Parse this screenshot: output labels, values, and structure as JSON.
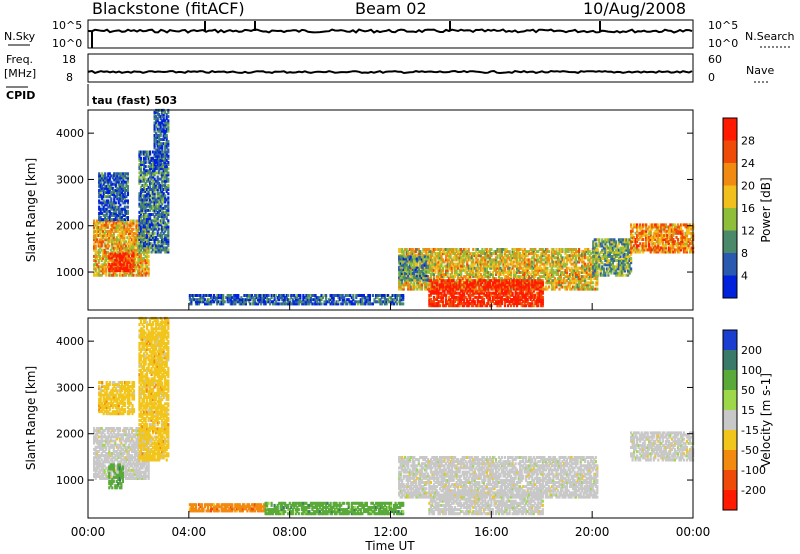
{
  "header": {
    "station": "Blackstone (fitACF)",
    "beam": "Beam 02",
    "date": "10/Aug/2008"
  },
  "top_panels": {
    "nsky_label": "N.Sky",
    "nsky_ticks": [
      "10^5",
      "10^0"
    ],
    "nsearch_label": "N.Search",
    "nsearch_ticks": [
      "10^5",
      "10^0"
    ],
    "freq_label_1": "Freq.",
    "freq_label_2": "[MHz]",
    "freq_ticks": [
      "18",
      "8"
    ],
    "nave_label": "Nave",
    "nave_ticks": [
      "60",
      "0"
    ],
    "cpid_label": "CPID",
    "cpid_value": "tau (fast) 503"
  },
  "colors": {
    "power": [
      "#0022dd",
      "#2a5ab0",
      "#4a8a6a",
      "#8fbf3a",
      "#f2c01c",
      "#f08a10",
      "#f04a08",
      "#ff1a00"
    ],
    "velocity": [
      "#1a3fd0",
      "#3a7a6a",
      "#5aaa3a",
      "#9dd84a",
      "#c8c8c8",
      "#f2c51c",
      "#f28a10",
      "#f04a08",
      "#ff1a00"
    ]
  },
  "chart_data": [
    {
      "type": "heatmap",
      "title": "Power",
      "ylabel": "Slant Range [km]",
      "ylim": [
        180,
        4500
      ],
      "xlim": [
        0,
        24
      ],
      "yticks": [
        "1000",
        "2000",
        "3000",
        "4000"
      ],
      "colorbar_label": "Power [dB]",
      "colorbar_ticks": [
        "4",
        "8",
        "12",
        "16",
        "20",
        "24",
        "28"
      ],
      "colorbar_range": [
        0,
        32
      ],
      "regions": [
        {
          "t0": 0.2,
          "t1": 2.4,
          "r0": 900,
          "r1": 2100,
          "p": 20
        },
        {
          "t0": 0.8,
          "t1": 1.8,
          "r0": 1000,
          "r1": 1400,
          "p": 29
        },
        {
          "t0": 2.0,
          "t1": 3.2,
          "r0": 1400,
          "r1": 3600,
          "p": 8
        },
        {
          "t0": 2.6,
          "t1": 3.2,
          "r0": 3200,
          "r1": 4500,
          "p": 6
        },
        {
          "t0": 0.4,
          "t1": 1.6,
          "r0": 2100,
          "r1": 3100,
          "p": 6
        },
        {
          "t0": 4.0,
          "t1": 12.5,
          "r0": 280,
          "r1": 500,
          "p": 6
        },
        {
          "t0": 12.3,
          "t1": 20.2,
          "r0": 600,
          "r1": 1500,
          "p": 18
        },
        {
          "t0": 13.5,
          "t1": 18.0,
          "r0": 240,
          "r1": 800,
          "p": 30
        },
        {
          "t0": 20.0,
          "t1": 21.5,
          "r0": 900,
          "r1": 1700,
          "p": 12
        },
        {
          "t0": 21.5,
          "t1": 24.0,
          "r0": 1400,
          "r1": 2000,
          "p": 22
        },
        {
          "t0": 12.3,
          "t1": 13.5,
          "r0": 800,
          "r1": 1300,
          "p": 10
        }
      ],
      "x_ticks": [
        "00:00",
        "04:00",
        "08:00",
        "12:00",
        "16:00",
        "20:00",
        "00:00"
      ]
    },
    {
      "type": "heatmap",
      "title": "Velocity",
      "ylabel": "Slant Range [km]",
      "xlabel": "Time UT",
      "ylim": [
        180,
        4500
      ],
      "xlim": [
        0,
        24
      ],
      "yticks": [
        "1000",
        "2000",
        "3000",
        "4000"
      ],
      "colorbar_label": "Velocity [m s-1]",
      "colorbar_ticks": [
        "200",
        "100",
        "50",
        "15",
        "-15",
        "-50",
        "-100",
        "-200"
      ],
      "regions": [
        {
          "t0": 0.2,
          "t1": 2.4,
          "r0": 1000,
          "r1": 2100,
          "v": "gray"
        },
        {
          "t0": 0.8,
          "t1": 1.4,
          "r0": 800,
          "r1": 1300,
          "v": "green"
        },
        {
          "t0": 2.0,
          "t1": 3.2,
          "r0": 1400,
          "r1": 4500,
          "v": "gold"
        },
        {
          "t0": 0.4,
          "t1": 1.8,
          "r0": 2400,
          "r1": 3100,
          "v": "gold"
        },
        {
          "t0": 4.0,
          "t1": 7.0,
          "r0": 300,
          "r1": 450,
          "v": "orange"
        },
        {
          "t0": 7.0,
          "t1": 12.5,
          "r0": 240,
          "r1": 500,
          "v": "green"
        },
        {
          "t0": 12.3,
          "t1": 20.2,
          "r0": 600,
          "r1": 1500,
          "v": "gray"
        },
        {
          "t0": 13.5,
          "t1": 18.0,
          "r0": 240,
          "r1": 700,
          "v": "gray"
        },
        {
          "t0": 21.5,
          "t1": 24.0,
          "r0": 1400,
          "r1": 2000,
          "v": "gray"
        }
      ],
      "x_ticks": [
        "00:00",
        "04:00",
        "08:00",
        "12:00",
        "16:00",
        "20:00",
        "00:00"
      ]
    }
  ]
}
